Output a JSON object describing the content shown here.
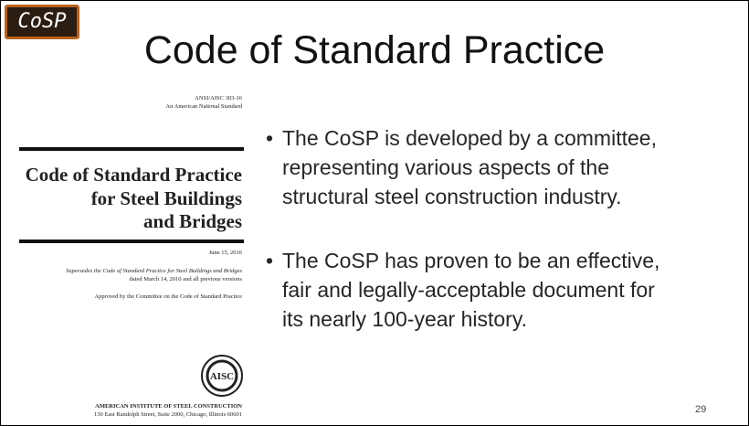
{
  "badge": "CoSP",
  "title": "Code of Standard Practice",
  "cover": {
    "designation": "ANSI/AISC 303-16",
    "standard": "An American National Standard",
    "title_lines": [
      "Code of Standard Practice",
      "for Steel Buildings",
      "and Bridges"
    ],
    "date": "June 15, 2016",
    "supersedes_lines": [
      "Supersedes the Code of Standard Practice for Steel Buildings and Bridges",
      "dated March 14, 2010 and all previous versions"
    ],
    "approved": "Approved by the Committee on the Code of Standard Practice",
    "logo": "AISC",
    "publisher": "AMERICAN INSTITUTE OF STEEL CONSTRUCTION",
    "address": "130 East Randolph Street, Suite 2000, Chicago, Illinois 60601"
  },
  "bullets": [
    {
      "lines": [
        "The CoSP is developed by a committee,",
        "representing various aspects of the",
        "structural steel construction industry."
      ]
    },
    {
      "lines": [
        "The CoSP has proven to be an effective,",
        "fair and legally-acceptable document for",
        "its nearly 100-year history."
      ]
    }
  ],
  "page_number": "29"
}
